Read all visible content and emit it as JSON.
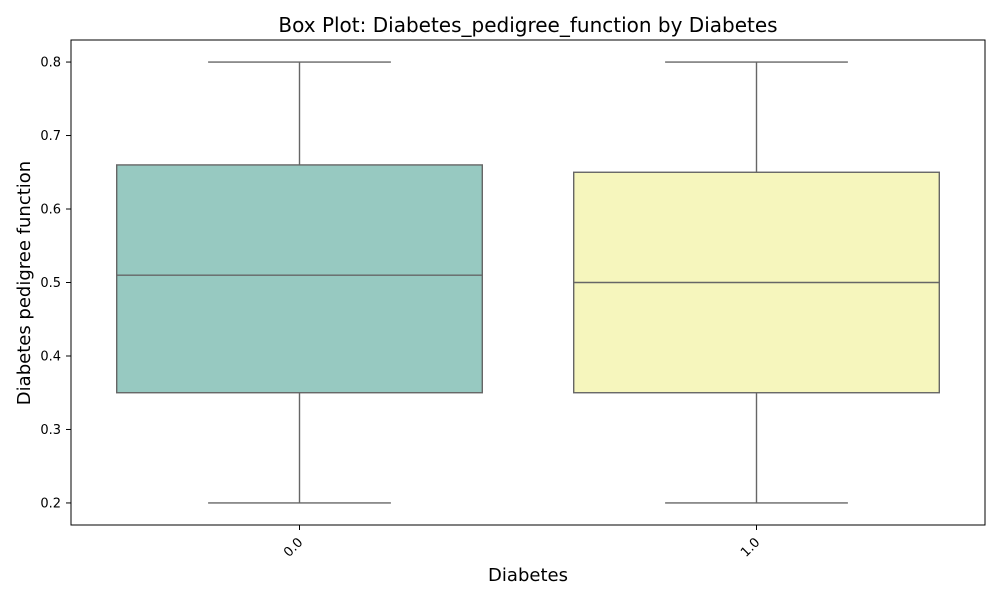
{
  "chart_data": {
    "type": "box",
    "title": "Box Plot: Diabetes_pedigree_function by Diabetes",
    "xlabel": "Diabetes",
    "ylabel": "Diabetes pedigree function",
    "ylim": [
      0.17,
      0.83
    ],
    "yticks": [
      0.2,
      0.3,
      0.4,
      0.5,
      0.6,
      0.7,
      0.8
    ],
    "ytick_labels": [
      "0.2",
      "0.3",
      "0.4",
      "0.5",
      "0.6",
      "0.7",
      "0.8"
    ],
    "categories": [
      "0.0",
      "1.0"
    ],
    "boxes": [
      {
        "category": "0.0",
        "whisker_low": 0.2,
        "q1": 0.35,
        "median": 0.51,
        "q3": 0.66,
        "whisker_high": 0.8,
        "color": "#97c9c1"
      },
      {
        "category": "1.0",
        "whisker_low": 0.2,
        "q1": 0.35,
        "median": 0.5,
        "q3": 0.65,
        "whisker_high": 0.8,
        "color": "#f6f6bd"
      }
    ],
    "line_color": "#666666",
    "grid": false,
    "xtick_rotation_deg": 45
  }
}
